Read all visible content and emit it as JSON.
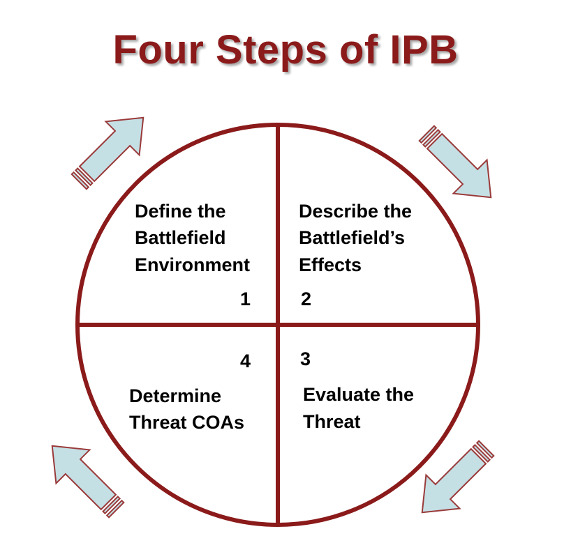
{
  "title": "Four Steps of IPB",
  "colors": {
    "title": "#8b1a1a",
    "circle_stroke": "#8b1a1a",
    "arrow_fill": "#c5e0e5",
    "arrow_stroke": "#9a3a3a"
  },
  "quadrants": [
    {
      "position": "top-left",
      "number": "1",
      "lines": [
        "Define the",
        "Battlefield",
        "Environment"
      ]
    },
    {
      "position": "top-right",
      "number": "2",
      "lines": [
        "Describe the",
        "Battlefield’s",
        "Effects"
      ]
    },
    {
      "position": "bottom-right",
      "number": "3",
      "lines": [
        "Evaluate the",
        "Threat"
      ]
    },
    {
      "position": "bottom-left",
      "number": "4",
      "lines": [
        "Determine",
        "Threat COAs"
      ]
    }
  ],
  "arrows": [
    {
      "position": "top-left",
      "direction": "up-right"
    },
    {
      "position": "top-right",
      "direction": "down-right"
    },
    {
      "position": "bottom-right",
      "direction": "down-left"
    },
    {
      "position": "bottom-left",
      "direction": "up-left"
    }
  ]
}
